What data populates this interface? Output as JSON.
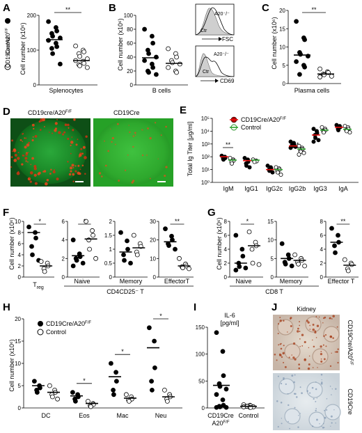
{
  "figure": {
    "panels": {
      "A": {
        "letter": "A",
        "ylabel": "Cell number (x10⁶)",
        "xlabel": "Splenocytes",
        "legend": [
          "CD19Cre/A20",
          "Control"
        ],
        "legend_sup": "F/F",
        "sig": "**"
      },
      "B": {
        "letter": "B",
        "ylabel": "Cell number (x10⁶)",
        "xlabel": "B cells",
        "hist_top": {
          "label": "A20⁻/⁻",
          "ctr": "Ctr",
          "axis": "FSC"
        },
        "hist_bottom": {
          "label": "A20⁻/⁻",
          "ctr": "Ctr",
          "axis": "CD69"
        }
      },
      "C": {
        "letter": "C",
        "ylabel": "Cell number (x10⁶)",
        "xlabel": "Plasma cells",
        "sig": "**"
      },
      "D": {
        "letter": "D",
        "left": "CD19cre/A20",
        "left_sup": "F/F",
        "right": "CD19Cre"
      },
      "E": {
        "letter": "E",
        "ylabel": "Total Ig Titer [μg/ml]",
        "legend": [
          "CD19Cre/A20",
          "Control"
        ],
        "legend_sup": "F/F",
        "sig1": "**",
        "sig2": "*"
      },
      "F": {
        "letter": "F",
        "ylabel": "Cell number (x10⁶)",
        "sub1": "T",
        "sub1_sub": "reg",
        "sub2": "Naive",
        "sub3": "Memory",
        "sub4": "EffectorT",
        "group": "CD4CD25⁻ T",
        "sig": "*",
        "sig2": "*",
        "sig4": "**"
      },
      "G": {
        "letter": "G",
        "ylabel": "Cell number (x10⁶)",
        "sub1": "Naive",
        "sub2": "Memory",
        "sub3": "Effector T",
        "group": "CD8 T",
        "sig": "*",
        "sig3": "**"
      },
      "H": {
        "letter": "H",
        "ylabel": "Cell number (x10⁶)",
        "legend": [
          "CD19Cre/A20",
          "Control"
        ],
        "legend_sup": "F/F",
        "sig": "*"
      },
      "I": {
        "letter": "I",
        "title": "IL-6",
        "unit": "[pg/ml]",
        "cat1a": "CD19Cre",
        "cat1b": "A20",
        "cat1b_sup": "F/F",
        "cat2": "Control"
      },
      "J": {
        "letter": "J",
        "title": "Kidney",
        "top": "CD19Cre/A20",
        "top_sup": "F/F",
        "bottom": "CD19Cre"
      }
    }
  },
  "chart_data": [
    {
      "panel": "A",
      "type": "scatter",
      "categories": [
        "CD19Cre/A20F/F",
        "Control"
      ],
      "ylim": [
        0,
        200
      ],
      "yticks": [
        0,
        100,
        200
      ],
      "series": [
        {
          "name": "CD19Cre/A20F/F",
          "filled": true,
          "values": [
            182,
            165,
            155,
            148,
            140,
            135,
            128,
            120,
            110,
            105,
            90,
            60
          ],
          "median": 130
        },
        {
          "name": "Control",
          "filled": false,
          "values": [
            112,
            100,
            95,
            90,
            82,
            75,
            70,
            68,
            62,
            58,
            55,
            50
          ],
          "median": 70
        }
      ]
    },
    {
      "panel": "B",
      "type": "scatter",
      "ylim": [
        0,
        100
      ],
      "yticks": [
        0,
        20,
        40,
        60,
        80,
        100
      ],
      "series": [
        {
          "name": "CD19Cre/A20F/F",
          "filled": true,
          "values": [
            80,
            70,
            60,
            50,
            45,
            40,
            35,
            30,
            25,
            20,
            18,
            15
          ],
          "median": 39
        },
        {
          "name": "Control",
          "filled": false,
          "values": [
            52,
            45,
            40,
            35,
            32,
            30,
            25,
            20,
            18
          ],
          "median": 31
        }
      ]
    },
    {
      "panel": "C",
      "type": "scatter",
      "ylim": [
        0,
        20
      ],
      "yticks": [
        0,
        5,
        10,
        15,
        20
      ],
      "series": [
        {
          "name": "CD19Cre/A20F/F",
          "filled": true,
          "values": [
            17,
            12.5,
            12,
            8.5,
            8,
            7.5,
            6,
            5,
            4.5,
            2.5
          ],
          "median": 7.8
        },
        {
          "name": "Control",
          "filled": false,
          "values": [
            4,
            3.2,
            3,
            2.6,
            2.4,
            2,
            1.8
          ],
          "median": 2.6
        }
      ]
    },
    {
      "panel": "E",
      "type": "scatter",
      "ylog": true,
      "ylim": [
        1,
        100000
      ],
      "categories": [
        "IgM",
        "IgG1",
        "IgG2c",
        "IgG2b",
        "IgG3",
        "IgA"
      ],
      "series": [
        {
          "name": "CD19Cre/A20F/F",
          "filled": true,
          "values": [
            [
              120,
              100,
              80,
              70,
              60
            ],
            [
              80,
              60,
              40,
              30,
              20,
              15
            ],
            [
              20,
              15,
              12,
              10,
              8,
              6
            ],
            [
              1500,
              1200,
              900,
              800,
              700,
              600,
              500
            ],
            [
              15000,
              10000,
              7000,
              5000,
              3000,
              2000,
              1500
            ],
            [
              30000,
              25000,
              20000,
              15000,
              12000
            ]
          ],
          "median": [
            100,
            50,
            10,
            700,
            5000,
            20000
          ]
        },
        {
          "name": "Control",
          "filled": false,
          "values": [
            [
              80,
              60,
              50,
              40,
              30
            ],
            [
              60,
              50,
              45,
              40
            ],
            [
              15,
              12,
              10,
              8,
              6,
              4
            ],
            [
              700,
              500,
              400,
              300,
              250,
              200,
              150
            ],
            [
              20000,
              15000,
              12000,
              10000,
              8000
            ],
            [
              25000,
              20000,
              15000,
              12000,
              10000,
              8000
            ]
          ],
          "median": [
            55,
            55,
            10,
            400,
            12000,
            14000
          ]
        }
      ]
    },
    {
      "panel": "F",
      "type": "scatter",
      "subpanels": [
        {
          "name": "Treg",
          "ylim": [
            0,
            10
          ],
          "yticks": [
            0,
            2,
            4,
            6,
            8,
            10
          ],
          "series": [
            {
              "filled": true,
              "values": [
                9,
                8,
                7,
                5.5,
                4,
                3
              ]
            },
            {
              "filled": false,
              "values": [
                2.8,
                2.5,
                2,
                1.5,
                1
              ]
            }
          ],
          "median": [
            8,
            2
          ]
        },
        {
          "name": "Naive",
          "ylim": [
            0,
            6
          ],
          "yticks": [
            0,
            2,
            4,
            6
          ],
          "series": [
            {
              "filled": true,
              "values": [
                4,
                2.5,
                2.2,
                2,
                1.8,
                1.5,
                1.2
              ]
            },
            {
              "filled": false,
              "values": [
                6,
                5,
                4.5,
                4,
                3,
                2
              ]
            }
          ],
          "median": [
            2.3,
            4.1
          ]
        },
        {
          "name": "Memory",
          "ylim": [
            0,
            2
          ],
          "yticks": [
            0,
            0.5,
            1.0,
            1.5,
            2.0
          ],
          "series": [
            {
              "filled": true,
              "values": [
                1.6,
                1.3,
                1.0,
                0.8,
                0.6,
                0.5
              ]
            },
            {
              "filled": false,
              "values": [
                1.5,
                1.2,
                1.1,
                0.9,
                0.8
              ]
            }
          ],
          "median": [
            0.9,
            1.05
          ]
        },
        {
          "name": "EffectorT",
          "ylim": [
            0,
            30
          ],
          "yticks": [
            0,
            10,
            20,
            30
          ],
          "series": [
            {
              "filled": true,
              "values": [
                26,
                22,
                20,
                18,
                17,
                15
              ]
            },
            {
              "filled": false,
              "values": [
                10,
                7,
                6,
                5.5,
                5,
                4.5
              ]
            }
          ],
          "median": [
            19,
            6
          ]
        }
      ]
    },
    {
      "panel": "G",
      "type": "scatter",
      "subpanels": [
        {
          "name": "Naive",
          "ylim": [
            0,
            8
          ],
          "yticks": [
            0,
            2,
            4,
            6,
            8
          ],
          "series": [
            {
              "filled": true,
              "values": [
                6,
                4,
                3,
                2,
                1.5,
                1.3,
                1
              ]
            },
            {
              "filled": false,
              "values": [
                6.5,
                5,
                4.5,
                4,
                2,
                1.8
              ]
            }
          ],
          "median": [
            2,
            4.5
          ]
        },
        {
          "name": "Memory",
          "ylim": [
            0,
            15
          ],
          "yticks": [
            0,
            5,
            10,
            15
          ],
          "series": [
            {
              "filled": true,
              "values": [
                9,
                6,
                5,
                4,
                3.5,
                3
              ]
            },
            {
              "filled": false,
              "values": [
                6,
                5,
                4.5,
                4,
                3.5,
                3
              ]
            }
          ],
          "median": [
            5,
            4.5
          ]
        },
        {
          "name": "Effector T",
          "ylim": [
            0,
            8
          ],
          "yticks": [
            0,
            2,
            4,
            6,
            8
          ],
          "series": [
            {
              "filled": true,
              "values": [
                7,
                6,
                5,
                4.5,
                3.5
              ]
            },
            {
              "filled": false,
              "values": [
                2.5,
                2,
                1.8,
                1.2,
                0.9
              ]
            }
          ],
          "median": [
            5,
            1.7
          ]
        }
      ]
    },
    {
      "panel": "H",
      "type": "scatter",
      "categories": [
        "DC",
        "Eos",
        "Mac",
        "Neu"
      ],
      "ylim": [
        0,
        20
      ],
      "yticks": [
        0,
        5,
        10,
        15,
        20
      ],
      "series": [
        {
          "name": "CD19Cre/A20F/F",
          "filled": true,
          "values": [
            [
              6,
              5,
              4.5,
              4,
              3.5
            ],
            [
              3.5,
              3,
              2.5,
              2,
              1.5
            ],
            [
              10,
              8,
              6,
              4,
              3
            ],
            [
              18,
              15,
              9,
              6,
              4
            ]
          ],
          "median": [
            5,
            2.7,
            7,
            13.5
          ]
        },
        {
          "name": "Control",
          "filled": false,
          "values": [
            [
              5,
              4,
              3.5,
              3,
              2.5,
              2
            ],
            [
              1.5,
              1,
              0.8,
              0.5,
              0.3
            ],
            [
              3,
              2.5,
              2,
              1.8,
              1.5
            ],
            [
              4,
              3,
              2.5,
              2,
              1.5
            ]
          ],
          "median": [
            3.5,
            1,
            2.2,
            2.5
          ]
        }
      ]
    },
    {
      "panel": "I",
      "type": "scatter",
      "categories": [
        "CD19Cre A20F/F",
        "Control"
      ],
      "ylim": [
        0,
        150
      ],
      "yticks": [
        0,
        50,
        100,
        150
      ],
      "series": [
        {
          "name": "CD19Cre/A20F/F",
          "filled": true,
          "values": [
            140,
            105,
            60,
            45,
            40,
            35,
            25,
            15,
            5,
            3,
            2,
            1,
            1
          ],
          "median": 42
        },
        {
          "name": "Control",
          "filled": false,
          "values": [
            6,
            5,
            4,
            3,
            3,
            2,
            2,
            1,
            1
          ],
          "median": 3
        }
      ]
    }
  ]
}
